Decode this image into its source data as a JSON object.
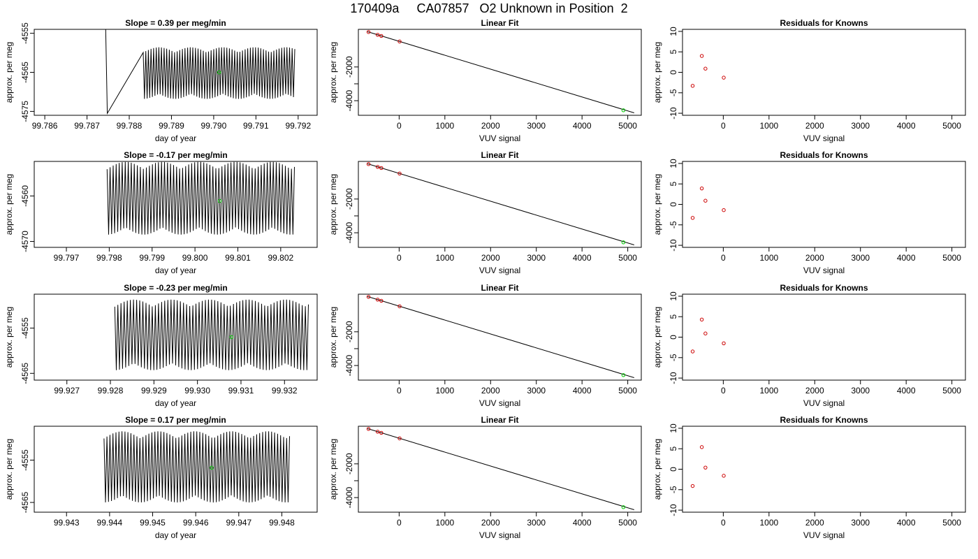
{
  "page": {
    "title": "170409a     CA07857   O2 Unknown in Position  2"
  },
  "chart_data": [
    {
      "type": "line",
      "title": "Slope =  0.39  per meg/min",
      "xlabel": "day of year",
      "ylabel": "approx. per meg",
      "xlim": [
        99.78575,
        99.79245
      ],
      "ylim": [
        -4576,
        -4554
      ],
      "xticks": [
        99.786,
        99.787,
        99.788,
        99.789,
        99.79,
        99.791,
        99.792
      ],
      "xtick_labels": [
        "99.786",
        "99.787",
        "99.788",
        "99.789",
        "99.790",
        "99.791",
        "99.792"
      ],
      "yticks": [
        -4575,
        -4565,
        -4555
      ],
      "ytick_labels": [
        "-4575",
        "-4565",
        "-4555"
      ],
      "series": [
        {
          "style": "oscillating-line",
          "color": "#000000",
          "x_start": 99.78833,
          "x_end": 99.79192,
          "center": -4565.2,
          "amplitude": 6.6,
          "cycles": 58,
          "lead_in": [
            [
              99.78744,
              -4553
            ],
            [
              99.78748,
              -4575.5
            ]
          ]
        },
        {
          "style": "point",
          "color": "#00cc00",
          "x": [
            99.79013
          ],
          "y": [
            -4565.0
          ]
        }
      ]
    },
    {
      "type": "scatter",
      "title": "Linear Fit",
      "xlabel": "VUV signal",
      "ylabel": "approx. per meg",
      "xlim": [
        -892,
        5296
      ],
      "ylim": [
        -4866,
        230
      ],
      "xticks": [
        0,
        1000,
        2000,
        3000,
        4000,
        5000
      ],
      "xtick_labels": [
        "0",
        "1000",
        "2000",
        "3000",
        "4000",
        "5000"
      ],
      "yticks": [
        -4000,
        -3000,
        -2000
      ],
      "ytick_labels": [
        "-4000",
        "",
        "-2000"
      ],
      "series": [
        {
          "style": "fit-line",
          "color": "#000000",
          "x": [
            -690,
            5140
          ],
          "y": [
            89,
            -4720
          ]
        },
        {
          "style": "points",
          "color": "#cc0000",
          "x": [
            -670,
            -470,
            -390,
            10
          ],
          "y": [
            72,
            -93,
            -160,
            -490
          ]
        },
        {
          "style": "point",
          "color": "#00cc00",
          "x": [
            4905
          ],
          "y": [
            -4567
          ]
        }
      ]
    },
    {
      "type": "scatter",
      "title": "Residuals for Knowns",
      "xlabel": "VUV signal",
      "ylabel": "approx. per meg",
      "xlim": [
        -892,
        5296
      ],
      "ylim": [
        -10.5,
        10.5
      ],
      "xticks": [
        0,
        1000,
        2000,
        3000,
        4000,
        5000
      ],
      "xtick_labels": [
        "0",
        "1000",
        "2000",
        "3000",
        "4000",
        "5000"
      ],
      "yticks": [
        -10,
        -5,
        0,
        5,
        10
      ],
      "ytick_labels": [
        "-10",
        "-5",
        "0",
        "5",
        "10"
      ],
      "series": [
        {
          "style": "points",
          "color": "#cc0000",
          "x": [
            -670,
            -470,
            -390,
            10
          ],
          "y": [
            -3.3,
            4.0,
            0.9,
            -1.3
          ]
        }
      ]
    },
    {
      "type": "line",
      "title": "Slope =  -0.17  per meg/min",
      "xlabel": "day of year",
      "ylabel": "approx. per meg",
      "xlim": [
        99.79625,
        99.80285
      ],
      "ylim": [
        -4571.3,
        -4552.4
      ],
      "xticks": [
        99.797,
        99.798,
        99.799,
        99.8,
        99.801,
        99.802
      ],
      "xtick_labels": [
        "99.797",
        "99.798",
        "99.799",
        "99.800",
        "99.801",
        "99.802"
      ],
      "yticks": [
        -4570,
        -4560
      ],
      "ytick_labels": [
        "-4570",
        "-4560"
      ],
      "series": [
        {
          "style": "oscillating-line",
          "color": "#000000",
          "x_start": 99.79795,
          "x_end": 99.80232,
          "center": -4560.5,
          "amplitude": 8.0,
          "cycles": 62,
          "lead_in": []
        },
        {
          "style": "point",
          "color": "#00cc00",
          "x": [
            99.80058
          ],
          "y": [
            -4561.1
          ]
        }
      ]
    },
    {
      "type": "scatter",
      "title": "Linear Fit",
      "xlabel": "VUV signal",
      "ylabel": "approx. per meg",
      "xlim": [
        -892,
        5296
      ],
      "ylim": [
        -4866,
        230
      ],
      "xticks": [
        0,
        1000,
        2000,
        3000,
        4000,
        5000
      ],
      "xtick_labels": [
        "0",
        "1000",
        "2000",
        "3000",
        "4000",
        "5000"
      ],
      "yticks": [
        -4000,
        -3000,
        -2000
      ],
      "ytick_labels": [
        "-4000",
        "",
        "-2000"
      ],
      "series": [
        {
          "style": "fit-line",
          "color": "#000000",
          "x": [
            -690,
            5140
          ],
          "y": [
            89,
            -4720
          ]
        },
        {
          "style": "points",
          "color": "#cc0000",
          "x": [
            -670,
            -470,
            -390,
            10
          ],
          "y": [
            72,
            -93,
            -160,
            -490
          ]
        },
        {
          "style": "point",
          "color": "#00cc00",
          "x": [
            4905
          ],
          "y": [
            -4567
          ]
        }
      ]
    },
    {
      "type": "scatter",
      "title": "Residuals for Knowns",
      "xlabel": "VUV signal",
      "ylabel": "approx. per meg",
      "xlim": [
        -892,
        5296
      ],
      "ylim": [
        -10.5,
        10.5
      ],
      "xticks": [
        0,
        1000,
        2000,
        3000,
        4000,
        5000
      ],
      "xtick_labels": [
        "0",
        "1000",
        "2000",
        "3000",
        "4000",
        "5000"
      ],
      "yticks": [
        -10,
        -5,
        0,
        5,
        10
      ],
      "ytick_labels": [
        "-10",
        "-5",
        "0",
        "5",
        "10"
      ],
      "series": [
        {
          "style": "points",
          "color": "#cc0000",
          "x": [
            -670,
            -470,
            -390,
            10
          ],
          "y": [
            -3.3,
            3.9,
            0.9,
            -1.4
          ]
        }
      ]
    },
    {
      "type": "line",
      "title": "Slope =  -0.23  per meg/min",
      "xlabel": "day of year",
      "ylabel": "approx. per meg",
      "xlim": [
        99.92625,
        99.93275
      ],
      "ylim": [
        -4566.5,
        -4547.5
      ],
      "xticks": [
        99.927,
        99.928,
        99.929,
        99.93,
        99.931,
        99.932
      ],
      "xtick_labels": [
        "99.927",
        "99.928",
        "99.929",
        "99.930",
        "99.931",
        "99.932"
      ],
      "yticks": [
        -4565,
        -4555
      ],
      "ytick_labels": [
        "-4565",
        "-4555"
      ],
      "series": [
        {
          "style": "oscillating-line",
          "color": "#000000",
          "x_start": 99.9281,
          "x_end": 99.93255,
          "center": -4556.5,
          "amplitude": 7.8,
          "cycles": 62,
          "lead_in": []
        },
        {
          "style": "point",
          "color": "#00cc00",
          "x": [
            99.93078
          ],
          "y": [
            -4557.0
          ]
        }
      ]
    },
    {
      "type": "scatter",
      "title": "Linear Fit",
      "xlabel": "VUV signal",
      "ylabel": "approx. per meg",
      "xlim": [
        -892,
        5296
      ],
      "ylim": [
        -4866,
        230
      ],
      "xticks": [
        0,
        1000,
        2000,
        3000,
        4000,
        5000
      ],
      "xtick_labels": [
        "0",
        "1000",
        "2000",
        "3000",
        "4000",
        "5000"
      ],
      "yticks": [
        -4000,
        -3000,
        -2000
      ],
      "ytick_labels": [
        "-4000",
        "",
        "-2000"
      ],
      "series": [
        {
          "style": "fit-line",
          "color": "#000000",
          "x": [
            -690,
            5140
          ],
          "y": [
            89,
            -4720
          ]
        },
        {
          "style": "points",
          "color": "#cc0000",
          "x": [
            -670,
            -470,
            -390,
            10
          ],
          "y": [
            72,
            -93,
            -160,
            -490
          ]
        },
        {
          "style": "point",
          "color": "#00cc00",
          "x": [
            4905
          ],
          "y": [
            -4567
          ]
        }
      ]
    },
    {
      "type": "scatter",
      "title": "Residuals for Knowns",
      "xlabel": "VUV signal",
      "ylabel": "approx. per meg",
      "xlim": [
        -892,
        5296
      ],
      "ylim": [
        -10.5,
        10.5
      ],
      "xticks": [
        0,
        1000,
        2000,
        3000,
        4000,
        5000
      ],
      "xtick_labels": [
        "0",
        "1000",
        "2000",
        "3000",
        "4000",
        "5000"
      ],
      "yticks": [
        -10,
        -5,
        0,
        5,
        10
      ],
      "ytick_labels": [
        "-10",
        "-5",
        "0",
        "5",
        "10"
      ],
      "series": [
        {
          "style": "points",
          "color": "#cc0000",
          "x": [
            -670,
            -470,
            -390,
            10
          ],
          "y": [
            -3.5,
            4.3,
            0.9,
            -1.5
          ]
        }
      ]
    },
    {
      "type": "line",
      "title": "Slope =  0.17  per meg/min",
      "xlabel": "day of year",
      "ylabel": "approx. per meg",
      "xlim": [
        99.94225,
        99.94882
      ],
      "ylim": [
        -4567.3,
        -4547.0
      ],
      "xticks": [
        99.943,
        99.944,
        99.945,
        99.946,
        99.947,
        99.948
      ],
      "xtick_labels": [
        "99.943",
        "99.944",
        "99.945",
        "99.946",
        "99.947",
        "99.948"
      ],
      "yticks": [
        -4565,
        -4555
      ],
      "ytick_labels": [
        "-4565",
        "-4555"
      ],
      "series": [
        {
          "style": "oscillating-line",
          "color": "#000000",
          "x_start": 99.94387,
          "x_end": 99.94818,
          "center": -4556.6,
          "amplitude": 8.4,
          "cycles": 62,
          "lead_in": []
        },
        {
          "style": "point",
          "color": "#00cc00",
          "x": [
            99.94637
          ],
          "y": [
            -4556.8
          ]
        }
      ]
    },
    {
      "type": "scatter",
      "title": "Linear Fit",
      "xlabel": "VUV signal",
      "ylabel": "approx. per meg",
      "xlim": [
        -892,
        5296
      ],
      "ylim": [
        -4866,
        230
      ],
      "xticks": [
        0,
        1000,
        2000,
        3000,
        4000,
        5000
      ],
      "xtick_labels": [
        "0",
        "1000",
        "2000",
        "3000",
        "4000",
        "5000"
      ],
      "yticks": [
        -4000,
        -3000,
        -2000
      ],
      "ytick_labels": [
        "-4000",
        "",
        "-2000"
      ],
      "series": [
        {
          "style": "fit-line",
          "color": "#000000",
          "x": [
            -690,
            5140
          ],
          "y": [
            89,
            -4720
          ]
        },
        {
          "style": "points",
          "color": "#cc0000",
          "x": [
            -670,
            -470,
            -390,
            10
          ],
          "y": [
            72,
            -93,
            -160,
            -490
          ]
        },
        {
          "style": "point",
          "color": "#00cc00",
          "x": [
            4905
          ],
          "y": [
            -4567
          ]
        }
      ]
    },
    {
      "type": "scatter",
      "title": "Residuals for Knowns",
      "xlabel": "VUV signal",
      "ylabel": "approx. per meg",
      "xlim": [
        -892,
        5296
      ],
      "ylim": [
        -10.5,
        10.5
      ],
      "xticks": [
        0,
        1000,
        2000,
        3000,
        4000,
        5000
      ],
      "xtick_labels": [
        "0",
        "1000",
        "2000",
        "3000",
        "4000",
        "5000"
      ],
      "yticks": [
        -10,
        -5,
        0,
        5,
        10
      ],
      "ytick_labels": [
        "-10",
        "-5",
        "0",
        "5",
        "10"
      ],
      "series": [
        {
          "style": "points",
          "color": "#cc0000",
          "x": [
            -670,
            -470,
            -390,
            10
          ],
          "y": [
            -4.1,
            5.4,
            0.4,
            -1.6
          ]
        }
      ]
    }
  ]
}
